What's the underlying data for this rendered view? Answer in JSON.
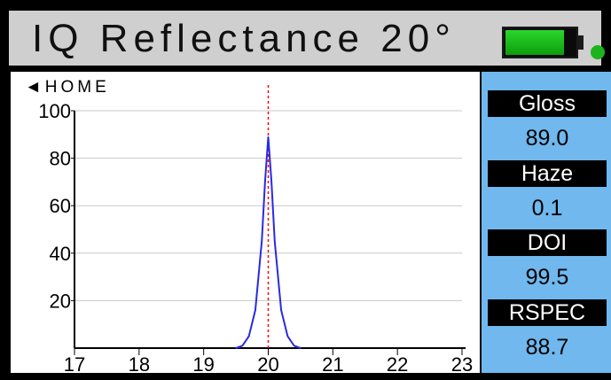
{
  "header": {
    "title": "IQ Reflectance 20°"
  },
  "status": {
    "battery_level": 0.85,
    "battery_color": "#1fc41f",
    "led_color": "#1db31d"
  },
  "nav": {
    "home_label": "◄HOME"
  },
  "chart_data": {
    "type": "line",
    "title": "",
    "xlabel": "",
    "ylabel": "",
    "xlim": [
      17,
      23
    ],
    "ylim": [
      0,
      100
    ],
    "x_ticks": [
      "17",
      "18",
      "19",
      "20",
      "21",
      "22",
      "23"
    ],
    "y_ticks": [
      "20",
      "40",
      "60",
      "80",
      "100"
    ],
    "grid": true,
    "reference_line": {
      "x": 20,
      "color": "#ff0000",
      "style": "dashed"
    },
    "series": [
      {
        "color": "#2a2ae0",
        "x": [
          19.5,
          19.6,
          19.7,
          19.8,
          19.9,
          19.95,
          20,
          20.05,
          20.1,
          20.2,
          20.3,
          20.4,
          20.5
        ],
        "y": [
          0,
          1,
          5,
          16,
          45,
          70,
          89,
          70,
          45,
          16,
          5,
          1,
          0
        ]
      }
    ]
  },
  "measurements": [
    {
      "label": "Gloss",
      "value": "89.0"
    },
    {
      "label": "Haze",
      "value": "0.1"
    },
    {
      "label": "DOI",
      "value": "99.5"
    },
    {
      "label": "RSPEC",
      "value": "88.7"
    }
  ]
}
